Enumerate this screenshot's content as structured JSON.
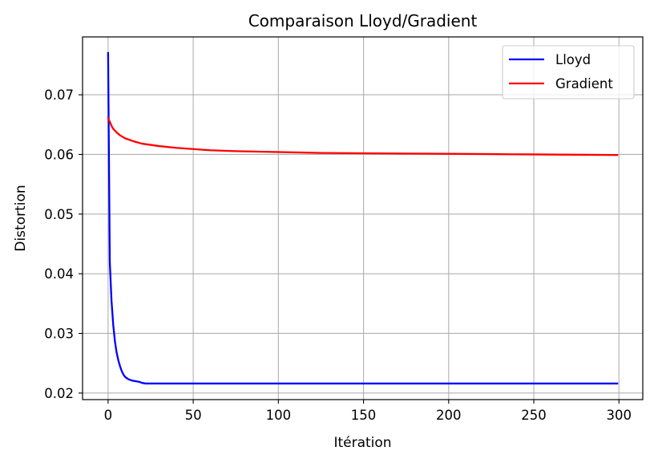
{
  "chart_data": {
    "type": "line",
    "title": "Comparaison Lloyd/Gradient",
    "xlabel": "Itération",
    "ylabel": "Distortion",
    "xlim": [
      -15,
      314
    ],
    "ylim": [
      0.0189,
      0.0797
    ],
    "x_ticks": [
      0,
      50,
      100,
      150,
      200,
      250,
      300
    ],
    "x_tick_labels": [
      "0",
      "50",
      "100",
      "150",
      "200",
      "250",
      "300"
    ],
    "y_ticks": [
      0.02,
      0.03,
      0.04,
      0.05,
      0.06,
      0.07
    ],
    "y_tick_labels": [
      "0.02",
      "0.03",
      "0.04",
      "0.05",
      "0.06",
      "0.07"
    ],
    "grid": true,
    "legend_position": "top-right",
    "series": [
      {
        "name": "Lloyd",
        "color": "#0000ff",
        "x": [
          0,
          1,
          2,
          3,
          4,
          5,
          6,
          7,
          8,
          9,
          10,
          12,
          14,
          16,
          18,
          20,
          22,
          25,
          30,
          40,
          60,
          100,
          150,
          200,
          250,
          299
        ],
        "y": [
          0.077,
          0.042,
          0.0355,
          0.0315,
          0.0287,
          0.0268,
          0.0255,
          0.0245,
          0.0237,
          0.0231,
          0.0227,
          0.0223,
          0.0221,
          0.022,
          0.0219,
          0.0217,
          0.0216,
          0.0216,
          0.0216,
          0.0216,
          0.0216,
          0.0216,
          0.0216,
          0.0216,
          0.0216,
          0.0216
        ]
      },
      {
        "name": "Gradient",
        "color": "#ff0000",
        "x": [
          0,
          1,
          2,
          3,
          5,
          7,
          10,
          15,
          20,
          25,
          30,
          40,
          50,
          60,
          75,
          100,
          125,
          150,
          175,
          200,
          225,
          250,
          275,
          299
        ],
        "y": [
          0.0661,
          0.0655,
          0.0648,
          0.0643,
          0.0637,
          0.0632,
          0.0627,
          0.0622,
          0.0618,
          0.0616,
          0.0614,
          0.0611,
          0.0609,
          0.0607,
          0.06055,
          0.0604,
          0.06025,
          0.0602,
          0.06015,
          0.0601,
          0.06005,
          0.06,
          0.05995,
          0.0599
        ]
      }
    ]
  }
}
